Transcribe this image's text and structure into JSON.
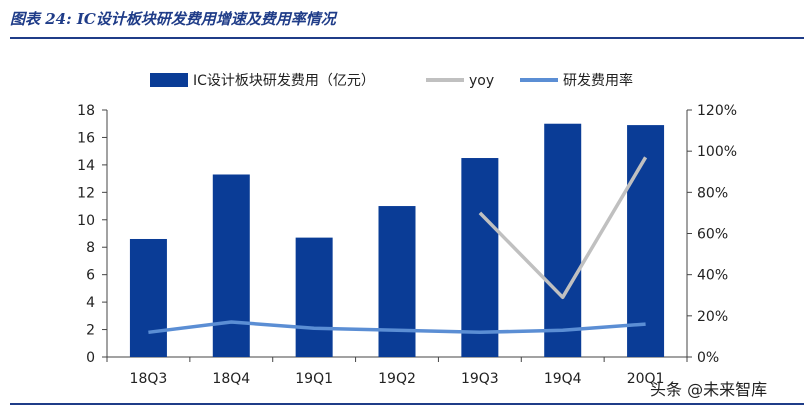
{
  "figure_title": "图表 24:  IC设计板块研发费用增速及费用率情况",
  "watermark": "头条 @未来智库",
  "chart_data": {
    "type": "bar",
    "categories": [
      "18Q3",
      "18Q4",
      "19Q1",
      "19Q2",
      "19Q3",
      "19Q4",
      "20Q1"
    ],
    "series": [
      {
        "name": "IC设计板块研发费用（亿元）",
        "type": "bar",
        "axis": "left",
        "color": "#0a3c96",
        "values": [
          8.6,
          13.3,
          8.7,
          11.0,
          14.5,
          17.0,
          16.9
        ]
      },
      {
        "name": "yoy",
        "type": "line",
        "axis": "right",
        "color": "#c0c0c0",
        "values": [
          null,
          null,
          null,
          null,
          70,
          29,
          97
        ]
      },
      {
        "name": "研发费用率",
        "type": "line",
        "axis": "right",
        "color": "#5b8ed4",
        "values": [
          12,
          17,
          14,
          13,
          12,
          13,
          16
        ]
      }
    ],
    "left_axis": {
      "min": 0,
      "max": 18,
      "step": 2,
      "ticks": [
        "0",
        "2",
        "4",
        "6",
        "8",
        "10",
        "12",
        "14",
        "16",
        "18"
      ]
    },
    "right_axis": {
      "min": 0,
      "max": 120,
      "step": 20,
      "ticks": [
        "0%",
        "20%",
        "40%",
        "60%",
        "80%",
        "100%",
        "120%"
      ]
    },
    "legend_position": "top",
    "grid": false
  }
}
